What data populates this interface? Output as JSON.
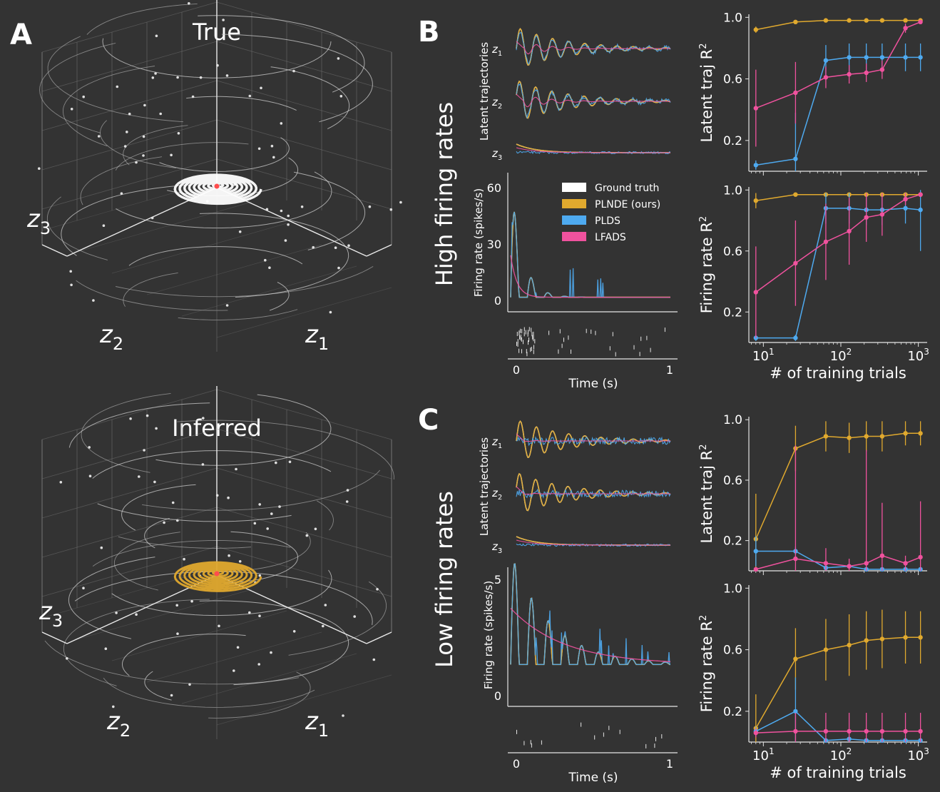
{
  "panels": {
    "A": {
      "letter": "A",
      "top_title": "True",
      "bottom_title": "Inferred",
      "axis_labels": {
        "z1": "z",
        "z2": "z",
        "z3": "z",
        "sub1": "1",
        "sub2": "2",
        "sub3": "3"
      }
    },
    "B": {
      "letter": "B",
      "row_label": "High firing rates"
    },
    "C": {
      "letter": "C",
      "row_label": "Low firing rates"
    }
  },
  "colors": {
    "ground_truth": "#ffffff",
    "plnde": "#e0a92e",
    "plds": "#4eaaf0",
    "lfads": "#f0529e",
    "axis": "#e6e6e6",
    "background": "#333333"
  },
  "legend": [
    {
      "label": "Ground truth",
      "color": "#ffffff"
    },
    {
      "label": "PLNDE (ours)",
      "color": "#e0a92e"
    },
    {
      "label": "PLDS",
      "color": "#4eaaf0"
    },
    {
      "label": "LFADS",
      "color": "#f0529e"
    }
  ],
  "traces": {
    "latent_ylabel": "Latent trajectories",
    "latent_rows": [
      "z",
      "z",
      "z"
    ],
    "latent_subs": [
      "1",
      "2",
      "3"
    ],
    "rate_ylabel": "Firing rate (spikes/s)",
    "xlabel": "Time (s)",
    "x_ticks": [
      "0",
      "1"
    ],
    "high_rate_ticks": [
      "0",
      "30",
      "60"
    ],
    "low_rate_ticks": [
      "0",
      "5"
    ]
  },
  "chart_data": [
    {
      "type": "line",
      "panel": "B-top",
      "ylabel": "Latent traj R",
      "ylabel_sup": "2",
      "x": [
        8,
        26,
        64,
        128,
        213,
        341,
        682,
        1066
      ],
      "x_scale": "log",
      "xlim": [
        6.5,
        1300
      ],
      "ylim": [
        0.0,
        1.02
      ],
      "y_ticks": [
        "0.2",
        "0.6",
        "1.0"
      ],
      "series": [
        {
          "name": "PLNDE (ours)",
          "color": "#e0a92e",
          "values": [
            0.92,
            0.97,
            0.98,
            0.98,
            0.98,
            0.98,
            0.98,
            0.98
          ],
          "err": [
            0.02,
            0.01,
            0.01,
            0.01,
            0.01,
            0.01,
            0.01,
            0.01
          ]
        },
        {
          "name": "PLDS",
          "color": "#4eaaf0",
          "values": [
            0.04,
            0.08,
            0.72,
            0.74,
            0.74,
            0.74,
            0.74,
            0.74
          ],
          "err": [
            0.03,
            0.3,
            0.1,
            0.09,
            0.09,
            0.09,
            0.09,
            0.09
          ]
        },
        {
          "name": "LFADS",
          "color": "#f0529e",
          "values": [
            0.41,
            0.51,
            0.61,
            0.63,
            0.64,
            0.66,
            0.93,
            0.97
          ],
          "err": [
            0.25,
            0.2,
            0.07,
            0.06,
            0.06,
            0.06,
            0.03,
            0.01
          ]
        }
      ]
    },
    {
      "type": "line",
      "panel": "B-bottom",
      "ylabel": "Firing rate R",
      "ylabel_sup": "2",
      "xlabel": "# of training trials",
      "x": [
        8,
        26,
        64,
        128,
        213,
        341,
        682,
        1066
      ],
      "x_scale": "log",
      "xlim": [
        6.5,
        1300
      ],
      "ylim": [
        0.0,
        1.02
      ],
      "y_ticks": [
        "0.2",
        "0.6",
        "1.0"
      ],
      "x_tick_labels": [
        {
          "base": "10",
          "exp": "1"
        },
        {
          "base": "10",
          "exp": "2"
        },
        {
          "base": "10",
          "exp": "3"
        }
      ],
      "series": [
        {
          "name": "PLNDE (ours)",
          "color": "#e0a92e",
          "values": [
            0.93,
            0.97,
            0.97,
            0.97,
            0.97,
            0.97,
            0.97,
            0.97
          ],
          "err": [
            0.05,
            0.01,
            0.01,
            0.01,
            0.01,
            0.01,
            0.01,
            0.01
          ]
        },
        {
          "name": "PLDS",
          "color": "#4eaaf0",
          "values": [
            0.03,
            0.03,
            0.88,
            0.88,
            0.87,
            0.87,
            0.88,
            0.87
          ],
          "err": [
            0.02,
            0.02,
            0.1,
            0.1,
            0.1,
            0.1,
            0.1,
            0.27
          ]
        },
        {
          "name": "LFADS",
          "color": "#f0529e",
          "values": [
            0.33,
            0.52,
            0.66,
            0.73,
            0.82,
            0.84,
            0.94,
            0.97
          ],
          "err": [
            0.3,
            0.28,
            0.25,
            0.22,
            0.16,
            0.14,
            0.04,
            0.01
          ]
        }
      ]
    },
    {
      "type": "line",
      "panel": "C-top",
      "ylabel": "Latent traj R",
      "ylabel_sup": "2",
      "x": [
        8,
        26,
        64,
        128,
        213,
        341,
        682,
        1066
      ],
      "x_scale": "log",
      "xlim": [
        6.5,
        1300
      ],
      "ylim": [
        0.0,
        1.02
      ],
      "y_ticks": [
        "0.2",
        "0.6",
        "1.0"
      ],
      "series": [
        {
          "name": "PLNDE (ours)",
          "color": "#e0a92e",
          "values": [
            0.21,
            0.81,
            0.89,
            0.88,
            0.89,
            0.89,
            0.91,
            0.91
          ],
          "err": [
            0.3,
            0.15,
            0.1,
            0.1,
            0.1,
            0.1,
            0.08,
            0.08
          ]
        },
        {
          "name": "PLDS",
          "color": "#4eaaf0",
          "values": [
            0.13,
            0.13,
            0.02,
            0.03,
            0.01,
            0.01,
            0.01,
            0.01
          ],
          "err": [
            0.1,
            0.03,
            0.01,
            0.01,
            0.01,
            0.01,
            0.01,
            0.01
          ]
        },
        {
          "name": "LFADS",
          "color": "#f0529e",
          "values": [
            0.01,
            0.08,
            0.05,
            0.03,
            0.05,
            0.1,
            0.05,
            0.09
          ],
          "err": [
            0.01,
            0.75,
            0.1,
            0.05,
            0.75,
            0.35,
            0.05,
            0.37
          ]
        }
      ]
    },
    {
      "type": "line",
      "panel": "C-bottom",
      "ylabel": "Firing rate R",
      "ylabel_sup": "2",
      "xlabel": "# of training trials",
      "x": [
        8,
        26,
        64,
        128,
        213,
        341,
        682,
        1066
      ],
      "x_scale": "log",
      "xlim": [
        6.5,
        1300
      ],
      "ylim": [
        0.0,
        1.02
      ],
      "y_ticks": [
        "0.2",
        "0.6",
        "1.0"
      ],
      "x_tick_labels": [
        {
          "base": "10",
          "exp": "1"
        },
        {
          "base": "10",
          "exp": "2"
        },
        {
          "base": "10",
          "exp": "3"
        }
      ],
      "series": [
        {
          "name": "PLNDE (ours)",
          "color": "#e0a92e",
          "values": [
            0.09,
            0.54,
            0.6,
            0.63,
            0.66,
            0.67,
            0.68,
            0.68
          ],
          "err": [
            0.22,
            0.2,
            0.2,
            0.2,
            0.19,
            0.19,
            0.17,
            0.17
          ]
        },
        {
          "name": "PLDS",
          "color": "#4eaaf0",
          "values": [
            0.07,
            0.2,
            0.01,
            0.02,
            0.01,
            0.01,
            0.01,
            0.01
          ],
          "err": [
            0.03,
            0.22,
            0.01,
            0.01,
            0.01,
            0.01,
            0.01,
            0.01
          ]
        },
        {
          "name": "LFADS",
          "color": "#f0529e",
          "values": [
            0.06,
            0.07,
            0.07,
            0.07,
            0.07,
            0.07,
            0.07,
            0.07
          ],
          "err": [
            0.03,
            0.12,
            0.12,
            0.12,
            0.12,
            0.12,
            0.12,
            0.12
          ]
        }
      ]
    }
  ]
}
